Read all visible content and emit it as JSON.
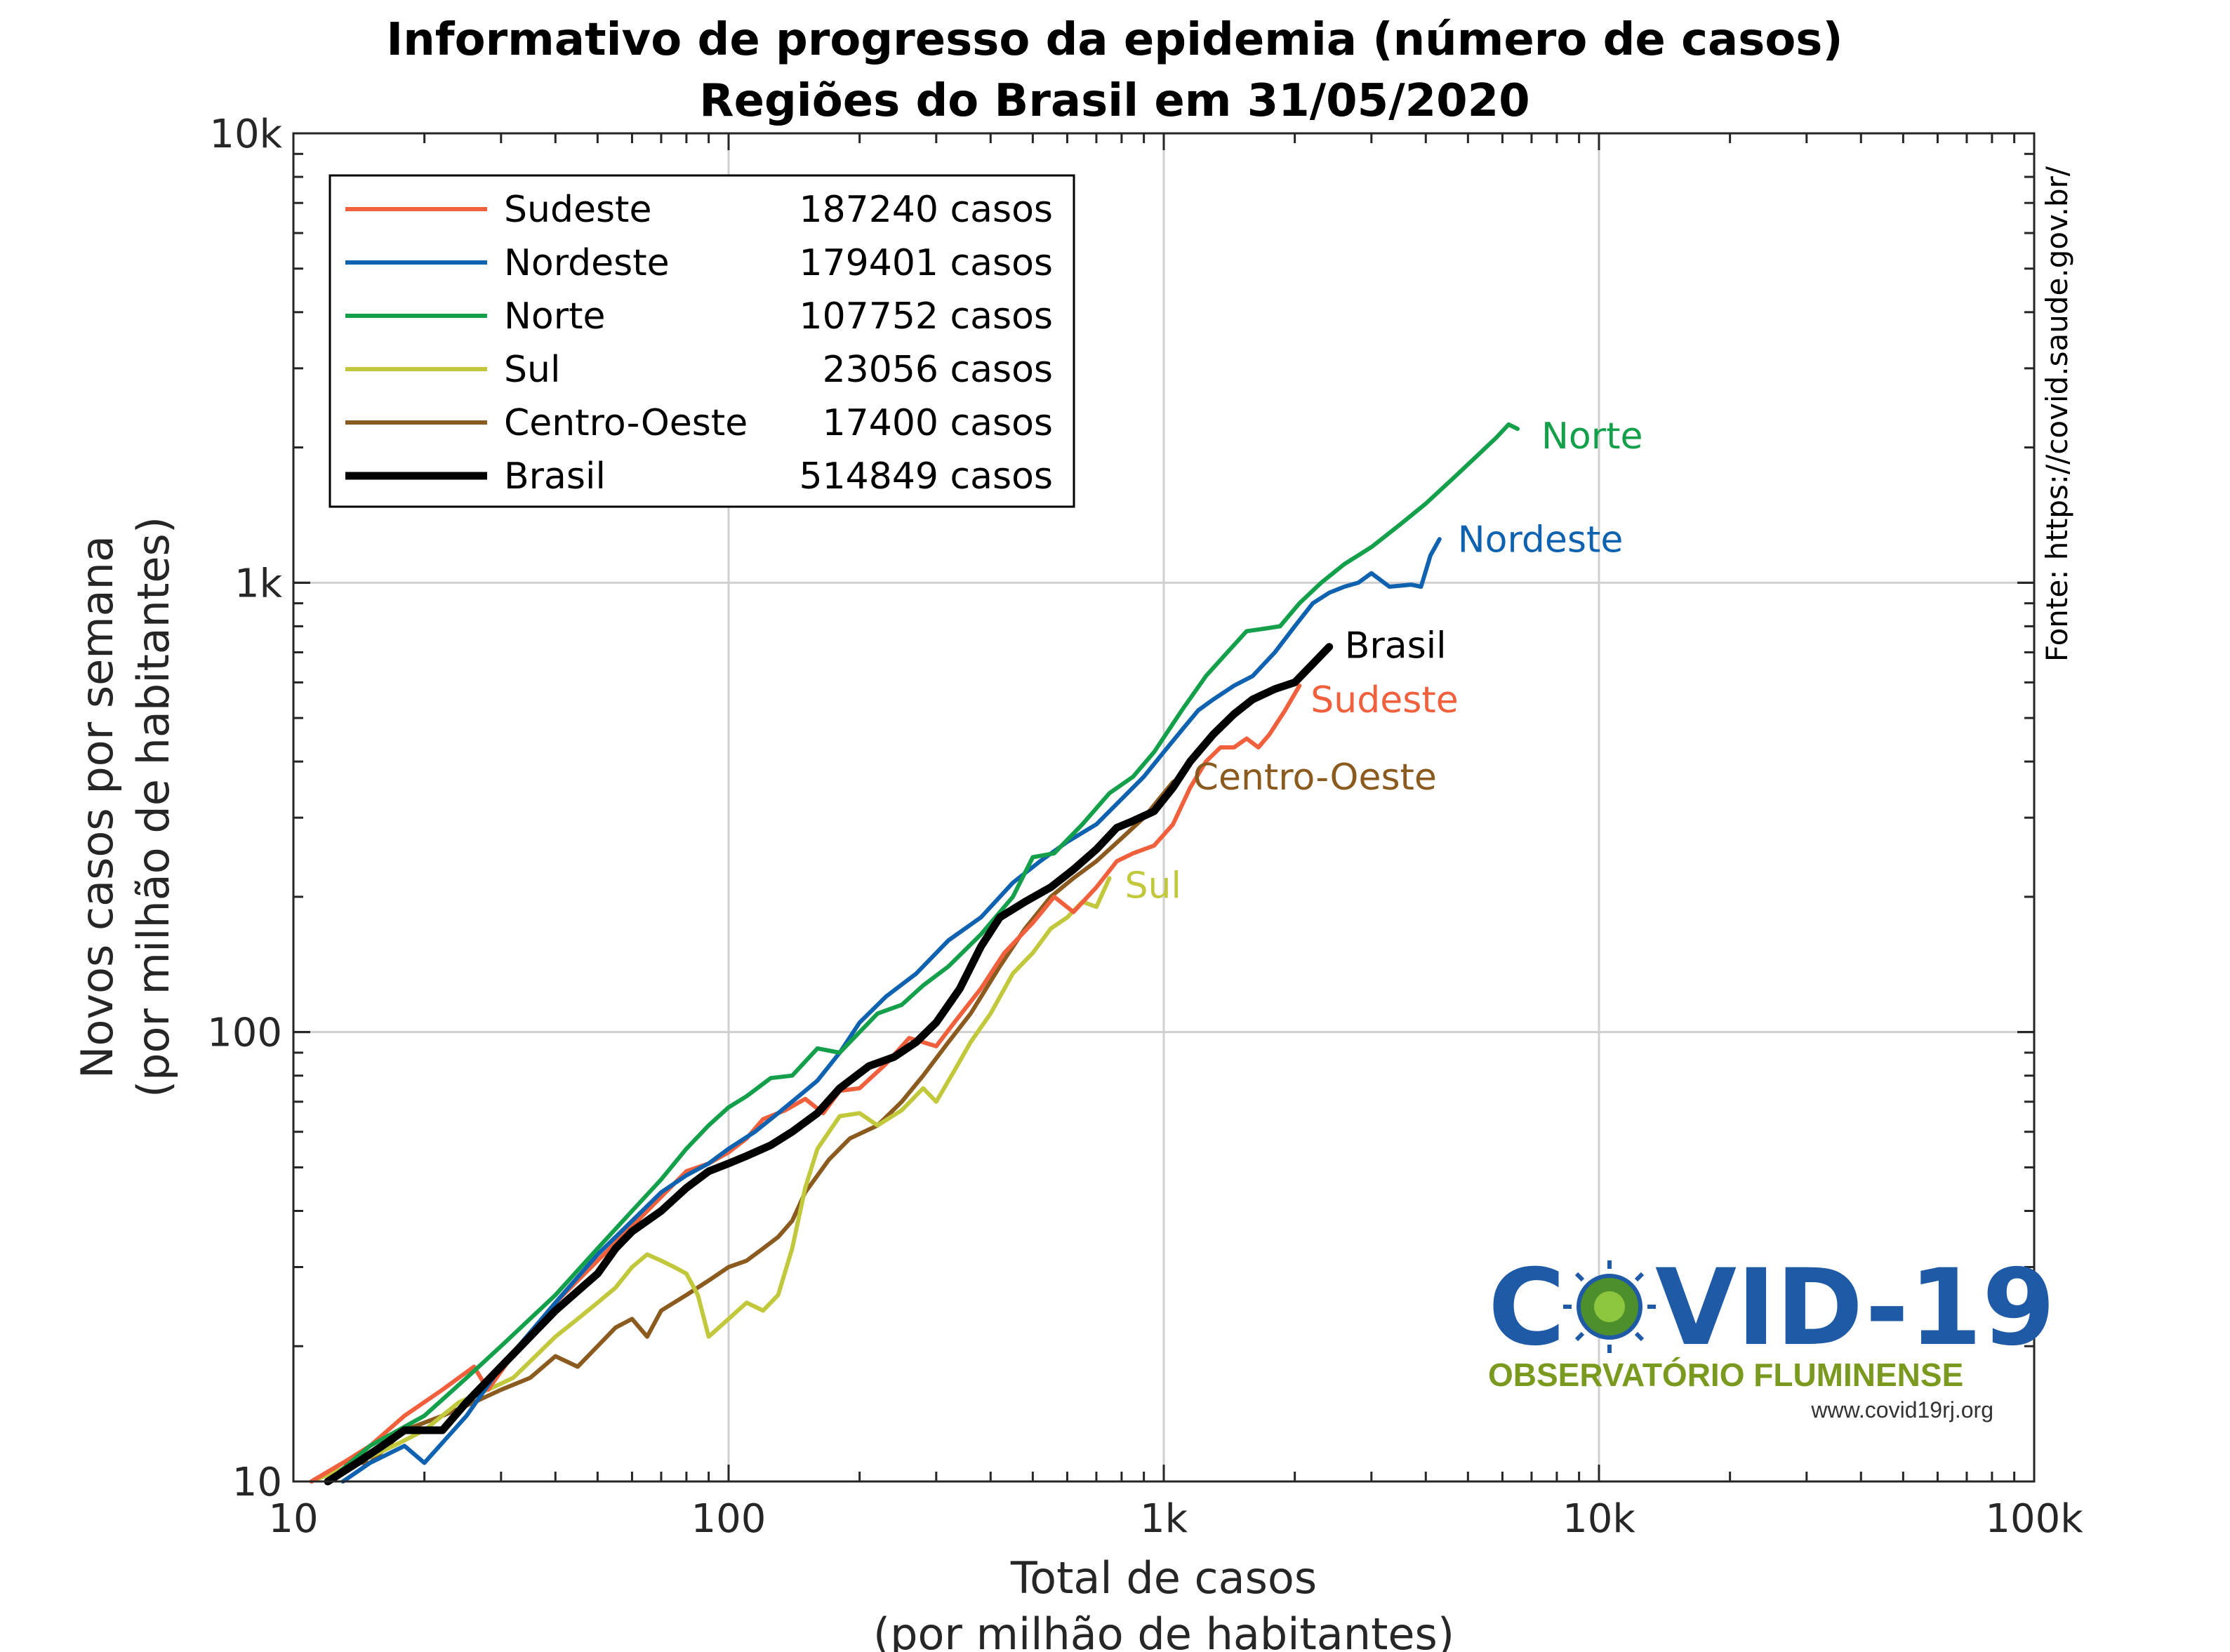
{
  "chart_data": {
    "type": "line",
    "title": "Informativo de progresso da epidemia (número de casos)",
    "subtitle": "Regiões do Brasil em 31/05/2020",
    "xlabel_line1": "Total de casos",
    "xlabel_line2": "(por milhão de habitantes)",
    "ylabel_line1": "Novos casos por semana",
    "ylabel_line2": "(por milhão de habitantes)",
    "x_scale": "log",
    "y_scale": "log",
    "xlim": [
      10,
      100000
    ],
    "ylim": [
      10,
      10000
    ],
    "x_ticks": [
      {
        "value": 10,
        "label": "10"
      },
      {
        "value": 100,
        "label": "100"
      },
      {
        "value": 1000,
        "label": "1k"
      },
      {
        "value": 10000,
        "label": "10k"
      },
      {
        "value": 100000,
        "label": "100k"
      }
    ],
    "y_ticks": [
      {
        "value": 10,
        "label": "10"
      },
      {
        "value": 100,
        "label": "100"
      },
      {
        "value": 1000,
        "label": "1k"
      },
      {
        "value": 10000,
        "label": "10k"
      }
    ],
    "grid": true,
    "legend_position": "top-left",
    "source": "Fonte: https://covid.saude.gov.br/",
    "series": [
      {
        "name": "Sudeste",
        "cases_label": "187240 casos",
        "color": "#f0603c",
        "end_label": "Sudeste",
        "points": [
          [
            11,
            10
          ],
          [
            13,
            11
          ],
          [
            15,
            12
          ],
          [
            18,
            14
          ],
          [
            22,
            16
          ],
          [
            26,
            18
          ],
          [
            28,
            16
          ],
          [
            33,
            20
          ],
          [
            40,
            25
          ],
          [
            50,
            31
          ],
          [
            60,
            37
          ],
          [
            70,
            43
          ],
          [
            80,
            49
          ],
          [
            90,
            51
          ],
          [
            100,
            54
          ],
          [
            110,
            58
          ],
          [
            120,
            64
          ],
          [
            135,
            67
          ],
          [
            150,
            71
          ],
          [
            165,
            66
          ],
          [
            180,
            74
          ],
          [
            200,
            75
          ],
          [
            230,
            85
          ],
          [
            260,
            97
          ],
          [
            300,
            93
          ],
          [
            330,
            105
          ],
          [
            380,
            125
          ],
          [
            430,
            150
          ],
          [
            500,
            175
          ],
          [
            560,
            200
          ],
          [
            620,
            185
          ],
          [
            700,
            210
          ],
          [
            780,
            240
          ],
          [
            850,
            250
          ],
          [
            950,
            260
          ],
          [
            1050,
            290
          ],
          [
            1150,
            350
          ],
          [
            1250,
            400
          ],
          [
            1350,
            430
          ],
          [
            1450,
            430
          ],
          [
            1550,
            450
          ],
          [
            1650,
            430
          ],
          [
            1750,
            460
          ],
          [
            1900,
            520
          ],
          [
            2050,
            590
          ]
        ]
      },
      {
        "name": "Nordeste",
        "cases_label": "179401 casos",
        "color": "#0f62b0",
        "end_label": "Nordeste",
        "points": [
          [
            13,
            10
          ],
          [
            15,
            11
          ],
          [
            18,
            12
          ],
          [
            20,
            11
          ],
          [
            25,
            14
          ],
          [
            30,
            18
          ],
          [
            40,
            25
          ],
          [
            50,
            32
          ],
          [
            60,
            38
          ],
          [
            70,
            44
          ],
          [
            80,
            48
          ],
          [
            90,
            51
          ],
          [
            100,
            55
          ],
          [
            115,
            60
          ],
          [
            130,
            66
          ],
          [
            145,
            72
          ],
          [
            160,
            78
          ],
          [
            180,
            90
          ],
          [
            200,
            105
          ],
          [
            230,
            120
          ],
          [
            270,
            135
          ],
          [
            320,
            160
          ],
          [
            380,
            180
          ],
          [
            450,
            215
          ],
          [
            520,
            240
          ],
          [
            600,
            265
          ],
          [
            700,
            290
          ],
          [
            800,
            330
          ],
          [
            900,
            370
          ],
          [
            1000,
            420
          ],
          [
            1100,
            470
          ],
          [
            1200,
            520
          ],
          [
            1300,
            550
          ],
          [
            1450,
            590
          ],
          [
            1600,
            620
          ],
          [
            1800,
            700
          ],
          [
            2000,
            800
          ],
          [
            2200,
            900
          ],
          [
            2400,
            950
          ],
          [
            2600,
            980
          ],
          [
            2800,
            1000
          ],
          [
            3000,
            1050
          ],
          [
            3300,
            980
          ],
          [
            3700,
            990
          ],
          [
            3900,
            980
          ],
          [
            4100,
            1150
          ],
          [
            4300,
            1250
          ]
        ]
      },
      {
        "name": "Norte",
        "cases_label": "107752 casos",
        "color": "#14a04a",
        "end_label": "Norte",
        "points": [
          [
            12,
            10
          ],
          [
            15,
            12
          ],
          [
            20,
            14
          ],
          [
            25,
            17
          ],
          [
            30,
            20
          ],
          [
            40,
            26
          ],
          [
            50,
            33
          ],
          [
            60,
            40
          ],
          [
            70,
            47
          ],
          [
            80,
            55
          ],
          [
            90,
            62
          ],
          [
            100,
            68
          ],
          [
            110,
            72
          ],
          [
            125,
            79
          ],
          [
            140,
            80
          ],
          [
            160,
            92
          ],
          [
            180,
            90
          ],
          [
            200,
            100
          ],
          [
            220,
            110
          ],
          [
            250,
            115
          ],
          [
            280,
            127
          ],
          [
            320,
            140
          ],
          [
            380,
            165
          ],
          [
            450,
            200
          ],
          [
            500,
            245
          ],
          [
            560,
            250
          ],
          [
            650,
            290
          ],
          [
            750,
            340
          ],
          [
            850,
            370
          ],
          [
            950,
            420
          ],
          [
            1100,
            520
          ],
          [
            1250,
            620
          ],
          [
            1400,
            700
          ],
          [
            1550,
            780
          ],
          [
            1700,
            790
          ],
          [
            1850,
            800
          ],
          [
            2050,
            900
          ],
          [
            2300,
            1000
          ],
          [
            2600,
            1100
          ],
          [
            3000,
            1200
          ],
          [
            3500,
            1350
          ],
          [
            4000,
            1500
          ],
          [
            4600,
            1700
          ],
          [
            5200,
            1900
          ],
          [
            5800,
            2100
          ],
          [
            6200,
            2250
          ],
          [
            6500,
            2200
          ]
        ]
      },
      {
        "name": "Sul",
        "cases_label": "23056 casos",
        "color": "#c2c83c",
        "end_label": "Sul",
        "points": [
          [
            11,
            10
          ],
          [
            14,
            11
          ],
          [
            17,
            12
          ],
          [
            20,
            13
          ],
          [
            24,
            15
          ],
          [
            28,
            16
          ],
          [
            32,
            17
          ],
          [
            36,
            19
          ],
          [
            40,
            21
          ],
          [
            45,
            23
          ],
          [
            50,
            25
          ],
          [
            55,
            27
          ],
          [
            60,
            30
          ],
          [
            65,
            32
          ],
          [
            70,
            31
          ],
          [
            75,
            30
          ],
          [
            80,
            29
          ],
          [
            85,
            26
          ],
          [
            90,
            21
          ],
          [
            95,
            22
          ],
          [
            100,
            23
          ],
          [
            110,
            25
          ],
          [
            120,
            24
          ],
          [
            130,
            26
          ],
          [
            140,
            33
          ],
          [
            150,
            45
          ],
          [
            160,
            55
          ],
          [
            180,
            65
          ],
          [
            200,
            66
          ],
          [
            220,
            62
          ],
          [
            250,
            67
          ],
          [
            280,
            75
          ],
          [
            300,
            70
          ],
          [
            330,
            82
          ],
          [
            360,
            95
          ],
          [
            400,
            110
          ],
          [
            450,
            135
          ],
          [
            500,
            150
          ],
          [
            550,
            170
          ],
          [
            600,
            180
          ],
          [
            650,
            195
          ],
          [
            700,
            190
          ],
          [
            750,
            220
          ]
        ]
      },
      {
        "name": "Centro-Oeste",
        "cases_label": "17400 casos",
        "color": "#8b5a1e",
        "end_label": "Centro-Oeste",
        "points": [
          [
            11,
            10
          ],
          [
            13,
            11
          ],
          [
            15,
            11
          ],
          [
            18,
            13
          ],
          [
            22,
            14
          ],
          [
            26,
            15
          ],
          [
            30,
            16
          ],
          [
            35,
            17
          ],
          [
            40,
            19
          ],
          [
            45,
            18
          ],
          [
            50,
            20
          ],
          [
            55,
            22
          ],
          [
            60,
            23
          ],
          [
            65,
            21
          ],
          [
            70,
            24
          ],
          [
            80,
            26
          ],
          [
            90,
            28
          ],
          [
            100,
            30
          ],
          [
            110,
            31
          ],
          [
            120,
            33
          ],
          [
            130,
            35
          ],
          [
            140,
            38
          ],
          [
            150,
            44
          ],
          [
            170,
            52
          ],
          [
            190,
            58
          ],
          [
            220,
            62
          ],
          [
            250,
            70
          ],
          [
            280,
            80
          ],
          [
            320,
            95
          ],
          [
            360,
            110
          ],
          [
            420,
            140
          ],
          [
            480,
            170
          ],
          [
            550,
            200
          ],
          [
            620,
            220
          ],
          [
            700,
            240
          ],
          [
            800,
            270
          ],
          [
            900,
            300
          ],
          [
            1000,
            340
          ],
          [
            1050,
            360
          ],
          [
            1100,
            370
          ]
        ]
      },
      {
        "name": "Brasil",
        "cases_label": "514849 casos",
        "color": "#000000",
        "end_label": "Brasil",
        "points": [
          [
            12,
            10
          ],
          [
            14,
            11
          ],
          [
            16,
            12
          ],
          [
            18,
            13
          ],
          [
            20,
            13
          ],
          [
            22,
            13
          ],
          [
            25,
            15
          ],
          [
            30,
            18
          ],
          [
            35,
            21
          ],
          [
            40,
            24
          ],
          [
            50,
            29
          ],
          [
            55,
            33
          ],
          [
            60,
            36
          ],
          [
            70,
            40
          ],
          [
            80,
            45
          ],
          [
            90,
            49
          ],
          [
            100,
            51
          ],
          [
            110,
            53
          ],
          [
            125,
            56
          ],
          [
            140,
            60
          ],
          [
            160,
            66
          ],
          [
            180,
            75
          ],
          [
            210,
            84
          ],
          [
            240,
            88
          ],
          [
            270,
            95
          ],
          [
            300,
            105
          ],
          [
            340,
            125
          ],
          [
            380,
            155
          ],
          [
            420,
            180
          ],
          [
            480,
            195
          ],
          [
            550,
            210
          ],
          [
            620,
            230
          ],
          [
            700,
            255
          ],
          [
            780,
            285
          ],
          [
            850,
            295
          ],
          [
            950,
            310
          ],
          [
            1050,
            350
          ],
          [
            1150,
            400
          ],
          [
            1300,
            460
          ],
          [
            1450,
            510
          ],
          [
            1600,
            550
          ],
          [
            1800,
            580
          ],
          [
            2000,
            600
          ],
          [
            2200,
            660
          ],
          [
            2400,
            720
          ]
        ]
      }
    ]
  },
  "logo": {
    "text_left": "C",
    "text_right": "VID-19",
    "subtitle": "OBSERVATÓRIO FLUMINENSE",
    "url": "www.covid19rj.org"
  }
}
